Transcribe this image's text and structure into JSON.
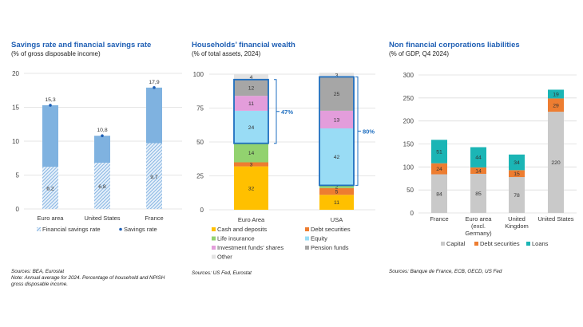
{
  "chart_data": [
    {
      "type": "bar",
      "title": "Savings rate and financial savings rate",
      "subtitle": "(% of gross disposable income)",
      "categories": [
        "Euro area",
        "United States",
        "France"
      ],
      "ylim": [
        0,
        20
      ],
      "yticks": [
        0,
        5,
        10,
        15,
        20
      ],
      "grid": true,
      "legend_position": "bottom",
      "series": [
        {
          "name": "Financial savings rate",
          "values": [
            6.2,
            6.8,
            9.7
          ],
          "labels": [
            "6,2",
            "6,8",
            "9,7"
          ],
          "color": "#7fb2e0",
          "style": "hatched"
        },
        {
          "name": "Savings rate",
          "values": [
            15.3,
            10.8,
            17.9
          ],
          "labels": [
            "15,3",
            "10,8",
            "17,9"
          ],
          "color": "#1f5fb4",
          "style": "dot+bar",
          "bar_color": "#7fb2e0"
        }
      ],
      "sources": "Sources: BEA, Eurostat",
      "note": "Note: Annual average for 2024. Percentage of household and NPISH",
      "note2": "gross disposable income."
    },
    {
      "type": "bar",
      "stacked": true,
      "title": "Households’ financial wealth",
      "subtitle": "(% of total assets, 2024)",
      "categories": [
        "Euro Area",
        "USA"
      ],
      "ylim": [
        0,
        100
      ],
      "yticks": [
        0,
        25,
        50,
        75,
        100
      ],
      "grid": true,
      "legend_position": "bottom",
      "series": [
        {
          "name": "Cash and deposits",
          "values": [
            32,
            11
          ],
          "color": "#ffc000"
        },
        {
          "name": "Debt securities",
          "values": [
            3,
            5
          ],
          "color": "#ed7d31"
        },
        {
          "name": "Life insurance",
          "values": [
            14,
            2
          ],
          "color": "#92d26f"
        },
        {
          "name": "Equity",
          "values": [
            24,
            42
          ],
          "color": "#99dcf5"
        },
        {
          "name": "Investment funds’ shares",
          "values": [
            11,
            13
          ],
          "color": "#e39ddb"
        },
        {
          "name": "Pension funds",
          "values": [
            12,
            25
          ],
          "color": "#a6a6a6"
        },
        {
          "name": "Other",
          "values": [
            4,
            3
          ],
          "color": "#e3e3e3"
        }
      ],
      "annotations": [
        {
          "category": "Euro Area",
          "text": "47%",
          "from": 49,
          "to": 96
        },
        {
          "category": "USA",
          "text": "80%",
          "from": 18,
          "to": 98
        }
      ],
      "annotation_color": "#1f6fc0",
      "sources": "Sources: US Fed, Eurostat"
    },
    {
      "type": "bar",
      "stacked": true,
      "title": "Non financial corporations liabilities",
      "subtitle": "(% of GDP, Q4 2024)",
      "categories": [
        [
          "France"
        ],
        [
          "Euro area",
          "(excl.",
          "Germany)"
        ],
        [
          "United",
          "Kingdom"
        ],
        [
          "United States"
        ]
      ],
      "ylim": [
        0,
        300
      ],
      "yticks": [
        0,
        50,
        100,
        150,
        200,
        250,
        300
      ],
      "grid": true,
      "legend_position": "bottom",
      "series": [
        {
          "name": "Capital",
          "values": [
            84,
            85,
            78,
            220
          ],
          "color": "#c9c9c9"
        },
        {
          "name": "Debt securities",
          "values": [
            24,
            14,
            15,
            29
          ],
          "color": "#ed7d31"
        },
        {
          "name": "Loans",
          "values": [
            51,
            44,
            34,
            19
          ],
          "color": "#1bb5b5"
        }
      ],
      "sources": "Sources: Banque de France, ECB, OECD, US Fed"
    }
  ]
}
